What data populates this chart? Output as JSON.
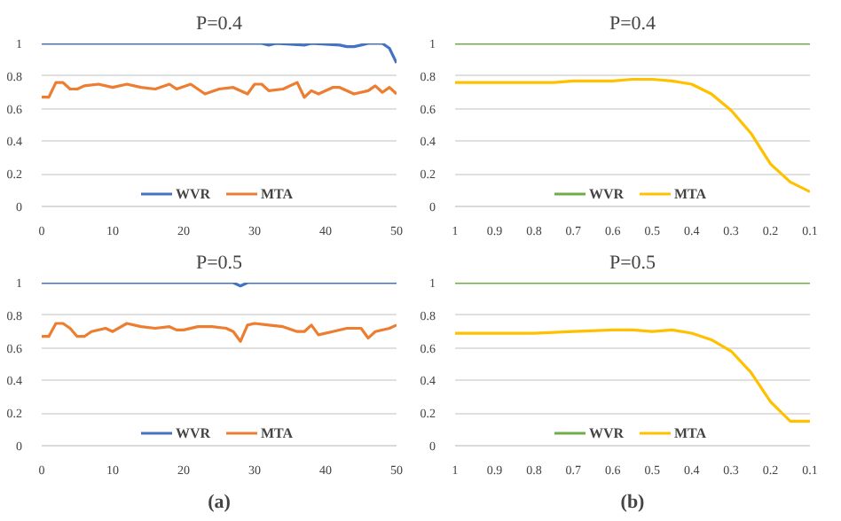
{
  "chart_data": [
    {
      "type": "line",
      "title": "P=0.4",
      "xlim": [
        0,
        50
      ],
      "xticks": [
        0,
        10,
        20,
        30,
        40,
        50
      ],
      "ylim": [
        0,
        1
      ],
      "yticks": [
        0,
        0.2,
        0.4,
        0.6,
        0.8,
        1
      ],
      "grid": "y",
      "legend": "bottom",
      "series": [
        {
          "name": "WVR",
          "color": "#4472c4",
          "x": [
            0,
            31,
            32,
            33,
            37,
            38,
            42,
            43,
            44,
            45,
            46,
            48,
            49,
            50
          ],
          "values": [
            1,
            1,
            0.99,
            1,
            0.99,
            1,
            0.99,
            0.98,
            0.98,
            0.99,
            1,
            1,
            0.97,
            0.88
          ]
        },
        {
          "name": "MTA",
          "color": "#ed7d31",
          "x": [
            0,
            1,
            2,
            3,
            4,
            5,
            6,
            8,
            10,
            12,
            14,
            16,
            18,
            19,
            21,
            22,
            23,
            25,
            27,
            29,
            30,
            31,
            32,
            34,
            36,
            37,
            38,
            39,
            41,
            42,
            44,
            46,
            47,
            48,
            49,
            50
          ],
          "values": [
            0.67,
            0.67,
            0.76,
            0.76,
            0.72,
            0.72,
            0.74,
            0.75,
            0.73,
            0.75,
            0.73,
            0.72,
            0.75,
            0.72,
            0.75,
            0.72,
            0.69,
            0.72,
            0.73,
            0.69,
            0.75,
            0.75,
            0.71,
            0.72,
            0.76,
            0.67,
            0.71,
            0.69,
            0.73,
            0.73,
            0.69,
            0.71,
            0.74,
            0.7,
            0.73,
            0.69
          ]
        }
      ]
    },
    {
      "type": "line",
      "title": "P=0.4",
      "xlim": [
        1,
        0.1
      ],
      "xticks": [
        1,
        0.9,
        0.8,
        0.7,
        0.6,
        0.5,
        0.4,
        0.3,
        0.2,
        0.1
      ],
      "ylim": [
        0,
        1
      ],
      "yticks": [
        0,
        0.2,
        0.4,
        0.6,
        0.8,
        1
      ],
      "grid": "y",
      "legend": "bottom",
      "series": [
        {
          "name": "WVR",
          "color": "#70ad47",
          "x": [
            1,
            0.1
          ],
          "values": [
            1,
            1
          ]
        },
        {
          "name": "MTA",
          "color": "#ffc000",
          "x": [
            1,
            0.95,
            0.9,
            0.85,
            0.8,
            0.75,
            0.7,
            0.65,
            0.6,
            0.55,
            0.5,
            0.45,
            0.4,
            0.35,
            0.3,
            0.25,
            0.2,
            0.15,
            0.1
          ],
          "values": [
            0.76,
            0.76,
            0.76,
            0.76,
            0.76,
            0.76,
            0.77,
            0.77,
            0.77,
            0.78,
            0.78,
            0.77,
            0.75,
            0.69,
            0.59,
            0.45,
            0.26,
            0.15,
            0.09
          ]
        }
      ]
    },
    {
      "type": "line",
      "title": "P=0.5",
      "xlim": [
        0,
        50
      ],
      "xticks": [
        0,
        10,
        20,
        30,
        40,
        50
      ],
      "ylim": [
        0,
        1
      ],
      "yticks": [
        0,
        0.2,
        0.4,
        0.6,
        0.8,
        1
      ],
      "grid": "y",
      "legend": "bottom",
      "annotations": [
        "(a)"
      ],
      "series": [
        {
          "name": "WVR",
          "color": "#4472c4",
          "x": [
            0,
            27,
            28,
            29,
            50
          ],
          "values": [
            1,
            1,
            0.98,
            1,
            1
          ]
        },
        {
          "name": "MTA",
          "color": "#ed7d31",
          "x": [
            0,
            1,
            2,
            3,
            4,
            5,
            6,
            7,
            9,
            10,
            12,
            14,
            16,
            18,
            19,
            20,
            22,
            24,
            26,
            27,
            28,
            29,
            30,
            32,
            34,
            36,
            37,
            38,
            39,
            41,
            43,
            45,
            46,
            47,
            49,
            50
          ],
          "values": [
            0.67,
            0.67,
            0.75,
            0.75,
            0.72,
            0.67,
            0.67,
            0.7,
            0.72,
            0.7,
            0.75,
            0.73,
            0.72,
            0.73,
            0.71,
            0.71,
            0.73,
            0.73,
            0.72,
            0.7,
            0.64,
            0.74,
            0.75,
            0.74,
            0.73,
            0.7,
            0.7,
            0.74,
            0.68,
            0.7,
            0.72,
            0.72,
            0.66,
            0.7,
            0.72,
            0.74
          ]
        }
      ]
    },
    {
      "type": "line",
      "title": "P=0.5",
      "xlim": [
        1,
        0.1
      ],
      "xticks": [
        1,
        0.9,
        0.8,
        0.7,
        0.6,
        0.5,
        0.4,
        0.3,
        0.2,
        0.1
      ],
      "ylim": [
        0,
        1
      ],
      "yticks": [
        0,
        0.2,
        0.4,
        0.6,
        0.8,
        1
      ],
      "grid": "y",
      "legend": "bottom",
      "annotations": [
        "(b)"
      ],
      "series": [
        {
          "name": "WVR",
          "color": "#70ad47",
          "x": [
            1,
            0.1
          ],
          "values": [
            1,
            1
          ]
        },
        {
          "name": "MTA",
          "color": "#ffc000",
          "x": [
            1,
            0.9,
            0.8,
            0.7,
            0.6,
            0.55,
            0.5,
            0.45,
            0.4,
            0.35,
            0.3,
            0.25,
            0.2,
            0.15,
            0.1
          ],
          "values": [
            0.69,
            0.69,
            0.69,
            0.7,
            0.71,
            0.71,
            0.7,
            0.71,
            0.69,
            0.65,
            0.58,
            0.45,
            0.27,
            0.15,
            0.15
          ]
        }
      ]
    }
  ]
}
